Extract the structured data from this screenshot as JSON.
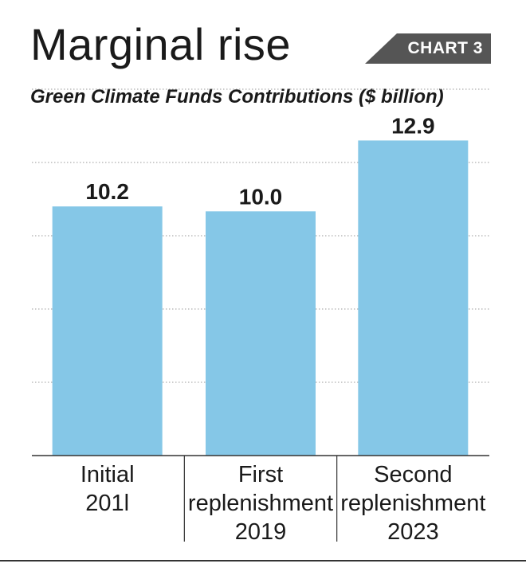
{
  "title": "Marginal rise",
  "badge": "CHART 3",
  "colors": {
    "bar": "#85c7e7",
    "badge_bg": "#555555",
    "grid": "#999999",
    "axis": "#333333"
  },
  "chart_data": {
    "type": "bar",
    "title": "Marginal rise",
    "subtitle": "Green Climate Funds Contributions ($ billion)",
    "categories": [
      [
        "Initial",
        "201l"
      ],
      [
        "First",
        "replenishment",
        "2019"
      ],
      [
        "Second",
        "replenishment",
        "2023"
      ]
    ],
    "values": [
      10.2,
      10.0,
      12.9
    ],
    "value_labels": [
      "10.2",
      "10.0",
      "12.9"
    ],
    "ylim": [
      0,
      15
    ],
    "grid": true,
    "xlabel": "",
    "ylabel": ""
  }
}
